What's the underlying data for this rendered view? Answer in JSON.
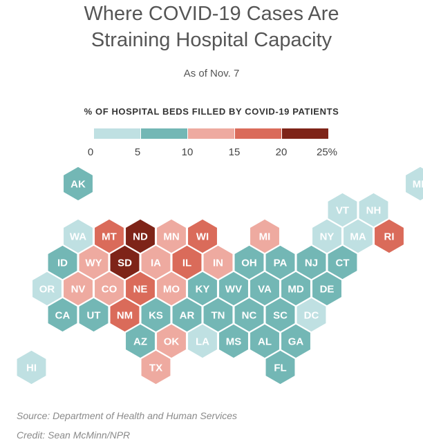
{
  "title_line1": "Where COVID-19 Cases Are",
  "title_line2": "Straining Hospital Capacity",
  "subtitle": "As of Nov. 7",
  "legend": {
    "title": "% OF HOSPITAL BEDS FILLED BY COVID-19 PATIENTS",
    "ticks": [
      "0",
      "5",
      "10",
      "15",
      "20",
      "25%"
    ],
    "bins": [
      {
        "range": [
          0,
          5
        ],
        "color": "#bfe0e2"
      },
      {
        "range": [
          5,
          10
        ],
        "color": "#73b7b5"
      },
      {
        "range": [
          10,
          15
        ],
        "color": "#eeaaa0"
      },
      {
        "range": [
          15,
          20
        ],
        "color": "#da6b5a"
      },
      {
        "range": [
          20,
          25
        ],
        "color": "#7e2418"
      }
    ]
  },
  "map": {
    "type": "hex-tile-map",
    "states": [
      {
        "abbr": "AK",
        "row": 0,
        "col": 1,
        "bin": 1
      },
      {
        "abbr": "ME",
        "row": 0,
        "col": 12,
        "bin": 0
      },
      {
        "abbr": "VT",
        "row": 1,
        "col": 10,
        "bin": 0
      },
      {
        "abbr": "NH",
        "row": 1,
        "col": 11,
        "bin": 0
      },
      {
        "abbr": "WA",
        "row": 2,
        "col": 1,
        "bin": 0
      },
      {
        "abbr": "MT",
        "row": 2,
        "col": 2,
        "bin": 3
      },
      {
        "abbr": "ND",
        "row": 2,
        "col": 3,
        "bin": 4
      },
      {
        "abbr": "MN",
        "row": 2,
        "col": 4,
        "bin": 2
      },
      {
        "abbr": "WI",
        "row": 2,
        "col": 5,
        "bin": 3
      },
      {
        "abbr": "MI",
        "row": 2,
        "col": 7,
        "bin": 2
      },
      {
        "abbr": "NY",
        "row": 2,
        "col": 9,
        "bin": 0
      },
      {
        "abbr": "MA",
        "row": 2,
        "col": 10,
        "bin": 0
      },
      {
        "abbr": "RI",
        "row": 2,
        "col": 11,
        "bin": 3
      },
      {
        "abbr": "ID",
        "row": 3,
        "col": 1,
        "bin": 1
      },
      {
        "abbr": "WY",
        "row": 3,
        "col": 2,
        "bin": 2
      },
      {
        "abbr": "SD",
        "row": 3,
        "col": 3,
        "bin": 4
      },
      {
        "abbr": "IA",
        "row": 3,
        "col": 4,
        "bin": 2
      },
      {
        "abbr": "IL",
        "row": 3,
        "col": 5,
        "bin": 3
      },
      {
        "abbr": "IN",
        "row": 3,
        "col": 6,
        "bin": 2
      },
      {
        "abbr": "OH",
        "row": 3,
        "col": 7,
        "bin": 1
      },
      {
        "abbr": "PA",
        "row": 3,
        "col": 8,
        "bin": 1
      },
      {
        "abbr": "NJ",
        "row": 3,
        "col": 9,
        "bin": 1
      },
      {
        "abbr": "CT",
        "row": 3,
        "col": 10,
        "bin": 1
      },
      {
        "abbr": "OR",
        "row": 4,
        "col": 0,
        "bin": 0
      },
      {
        "abbr": "NV",
        "row": 4,
        "col": 1,
        "bin": 2
      },
      {
        "abbr": "CO",
        "row": 4,
        "col": 2,
        "bin": 2
      },
      {
        "abbr": "NE",
        "row": 4,
        "col": 3,
        "bin": 3
      },
      {
        "abbr": "MO",
        "row": 4,
        "col": 4,
        "bin": 2
      },
      {
        "abbr": "KY",
        "row": 4,
        "col": 5,
        "bin": 1
      },
      {
        "abbr": "WV",
        "row": 4,
        "col": 6,
        "bin": 1
      },
      {
        "abbr": "VA",
        "row": 4,
        "col": 7,
        "bin": 1
      },
      {
        "abbr": "MD",
        "row": 4,
        "col": 8,
        "bin": 1
      },
      {
        "abbr": "DE",
        "row": 4,
        "col": 9,
        "bin": 1
      },
      {
        "abbr": "CA",
        "row": 5,
        "col": 1,
        "bin": 1
      },
      {
        "abbr": "UT",
        "row": 5,
        "col": 2,
        "bin": 1
      },
      {
        "abbr": "NM",
        "row": 5,
        "col": 3,
        "bin": 3
      },
      {
        "abbr": "KS",
        "row": 5,
        "col": 4,
        "bin": 1
      },
      {
        "abbr": "AR",
        "row": 5,
        "col": 5,
        "bin": 1
      },
      {
        "abbr": "TN",
        "row": 5,
        "col": 6,
        "bin": 1
      },
      {
        "abbr": "NC",
        "row": 5,
        "col": 7,
        "bin": 1
      },
      {
        "abbr": "SC",
        "row": 5,
        "col": 8,
        "bin": 1
      },
      {
        "abbr": "DC",
        "row": 5,
        "col": 9,
        "bin": 0
      },
      {
        "abbr": "AZ",
        "row": 6,
        "col": 3,
        "bin": 1
      },
      {
        "abbr": "OK",
        "row": 6,
        "col": 4,
        "bin": 2
      },
      {
        "abbr": "LA",
        "row": 6,
        "col": 5,
        "bin": 0
      },
      {
        "abbr": "MS",
        "row": 6,
        "col": 6,
        "bin": 1
      },
      {
        "abbr": "AL",
        "row": 6,
        "col": 7,
        "bin": 1
      },
      {
        "abbr": "GA",
        "row": 6,
        "col": 8,
        "bin": 1
      },
      {
        "abbr": "HI",
        "row": 7,
        "col": 0,
        "bin": 0
      },
      {
        "abbr": "TX",
        "row": 7,
        "col": 4,
        "bin": 2
      },
      {
        "abbr": "FL",
        "row": 7,
        "col": 8,
        "bin": 1
      }
    ]
  },
  "source": "Source: Department of Health and Human Services",
  "credit": "Credit: Sean McMinn/NPR"
}
